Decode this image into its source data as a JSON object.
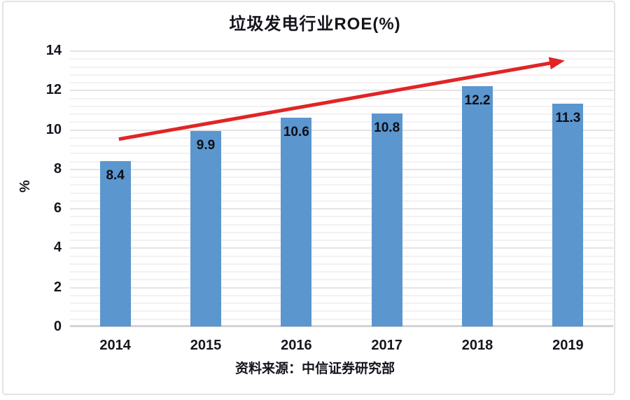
{
  "chart_data": {
    "type": "bar",
    "title": "垃圾发电行业ROE(%)",
    "categories": [
      "2014",
      "2015",
      "2016",
      "2017",
      "2018",
      "2019"
    ],
    "values": [
      8.4,
      9.9,
      10.6,
      10.8,
      12.2,
      11.3
    ],
    "xlabel": "",
    "ylabel": "%",
    "ylim": [
      0,
      14
    ],
    "yticks": [
      0,
      2,
      4,
      6,
      8,
      10,
      12,
      14
    ],
    "ytick_step": 2,
    "minor_gridline_step": 0.4,
    "grid": "on",
    "legend": "none",
    "bar_color": "#5B96CF",
    "value_label_color": "#0e0e13",
    "trend_arrow": {
      "color": "#E02526",
      "from": {
        "category_index": 0.04,
        "value": 9.5
      },
      "to": {
        "category_index": 4.92,
        "value": 13.45
      }
    }
  },
  "source_note": "资料来源：中信证券研究部"
}
